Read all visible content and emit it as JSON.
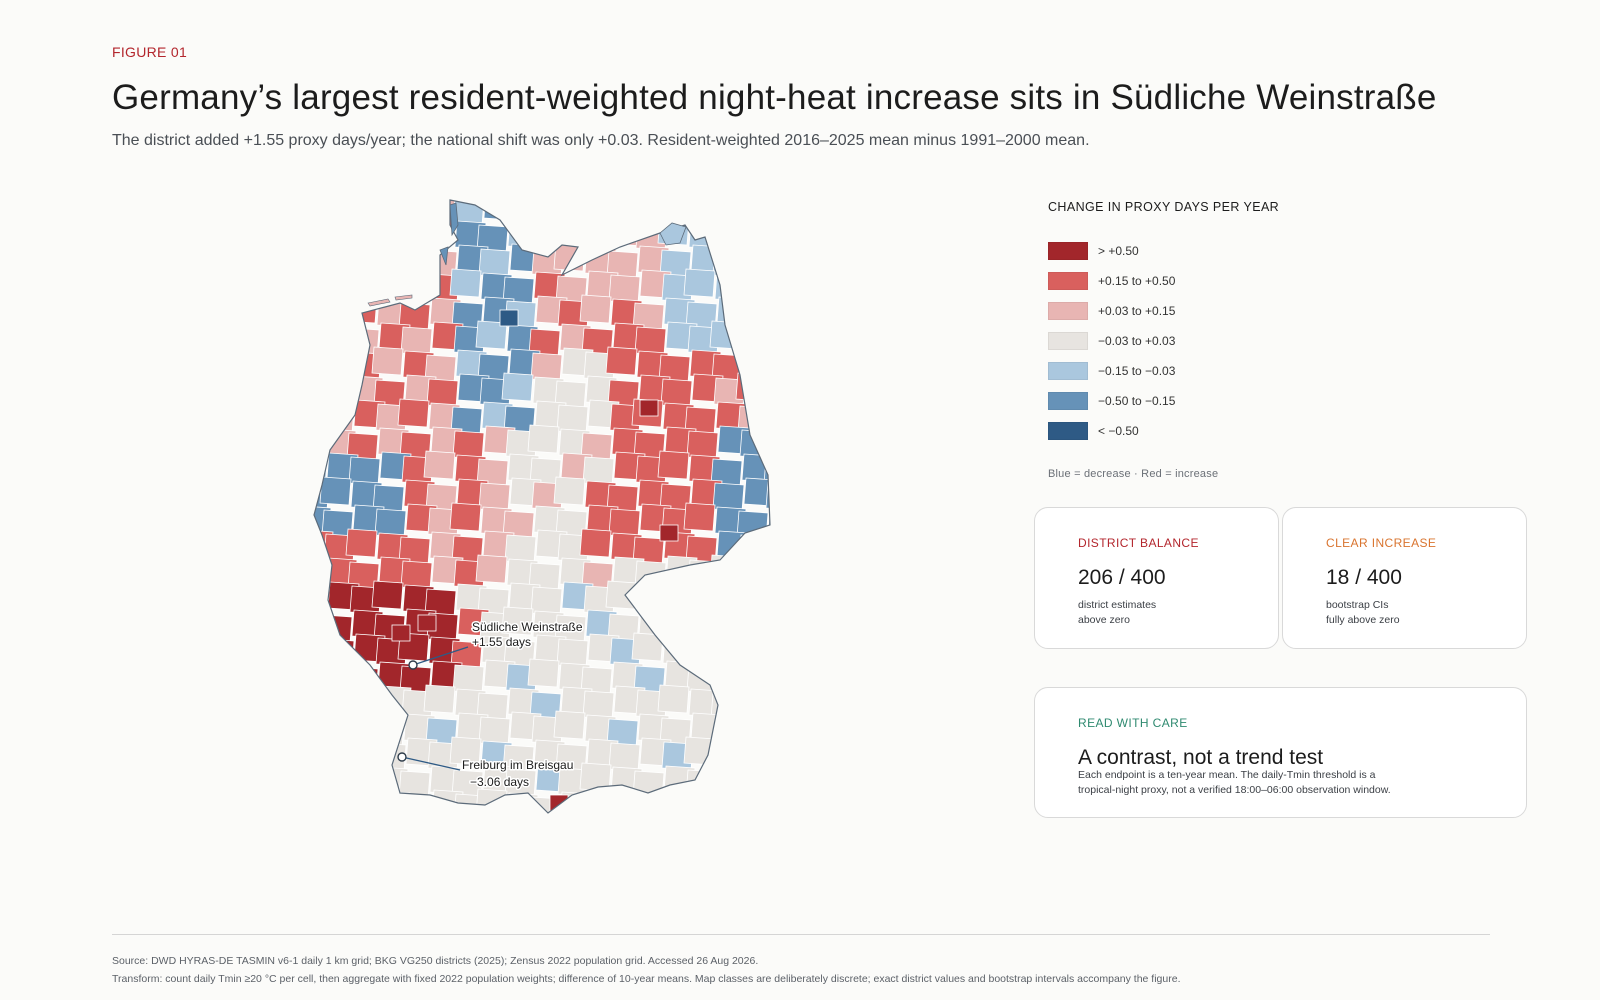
{
  "figure": {
    "eyebrow": "FIGURE 01",
    "title": "Germany’s largest resident-weighted night-heat increase sits in Südliche Weinstraße",
    "subtitle": "The district added +1.55 proxy days/year; the national shift was only +0.03. Resident-weighted 2016–2025 mean minus 1991–2000 mean."
  },
  "legend": {
    "title": "CHANGE IN PROXY DAYS PER YEAR",
    "classes": [
      {
        "label": "> +0.50",
        "color": "#a2262b"
      },
      {
        "label": "+0.15 to +0.50",
        "color": "#d9605e"
      },
      {
        "label": "+0.03 to +0.15",
        "color": "#e8b5b3"
      },
      {
        "label": "−0.03 to +0.03",
        "color": "#e7e4e0"
      },
      {
        "label": "−0.15 to −0.03",
        "color": "#aac7de"
      },
      {
        "label": "−0.50 to −0.15",
        "color": "#6692b8"
      },
      {
        "label": "< −0.50",
        "color": "#2e5a85"
      }
    ],
    "note": "Blue = decrease · Red = increase"
  },
  "map": {
    "annotations": [
      {
        "name": "Südliche Weinstraße",
        "value": "+1.55 days"
      },
      {
        "name": "Freiburg im Breisgau",
        "value": "−3.06 days"
      }
    ]
  },
  "cards": {
    "balance": {
      "kicker": "DISTRICT BALANCE",
      "kicker_color": "#b3262d",
      "value": "206 / 400",
      "desc_line1": "district estimates",
      "desc_line2": "above zero"
    },
    "clear": {
      "kicker": "CLEAR INCREASE",
      "kicker_color": "#d9742f",
      "value": "18 / 400",
      "desc_line1": "bootstrap CIs",
      "desc_line2": "fully above zero"
    },
    "care": {
      "kicker": "READ WITH CARE",
      "kicker_color": "#2f8a70",
      "title": "A contrast, not a trend test",
      "body_line1": "Each endpoint is a ten-year mean. The daily-Tmin threshold is a",
      "body_line2": "tropical-night proxy, not a verified 18:00–06:00 observation window."
    }
  },
  "footer": {
    "source": "Source: DWD HYRAS-DE TASMIN v6-1 daily 1 km grid; BKG VG250 districts (2025); Zensus 2022 population grid. Accessed 26 Aug 2026.",
    "transform": "Transform: count daily Tmin ≥20 °C per cell, then aggregate with fixed 2022 population weights; difference of 10-year means. Map classes are deliberately discrete; exact district values and bootstrap intervals accompany the figure."
  }
}
